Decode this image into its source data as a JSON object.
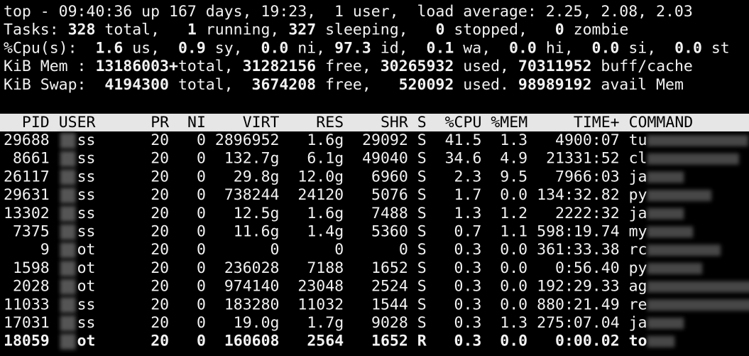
{
  "header_lines": [
    [
      {
        "t": "top - 09:40:36 up 167 days, 19:23,  1 user,  load average: 2.25, 2.08, 2.03"
      }
    ],
    [
      {
        "t": "Tasks: "
      },
      {
        "t": "328",
        "b": true
      },
      {
        "t": " total,   "
      },
      {
        "t": "1",
        "b": true
      },
      {
        "t": " running, "
      },
      {
        "t": "327",
        "b": true
      },
      {
        "t": " sleeping,   "
      },
      {
        "t": "0",
        "b": true
      },
      {
        "t": " stopped,   "
      },
      {
        "t": "0",
        "b": true
      },
      {
        "t": " zombie"
      }
    ],
    [
      {
        "t": "%Cpu(s):  "
      },
      {
        "t": "1.6",
        "b": true
      },
      {
        "t": " us,  "
      },
      {
        "t": "0.9",
        "b": true
      },
      {
        "t": " sy,  "
      },
      {
        "t": "0.0",
        "b": true
      },
      {
        "t": " ni, "
      },
      {
        "t": "97.3",
        "b": true
      },
      {
        "t": " id,  "
      },
      {
        "t": "0.1",
        "b": true
      },
      {
        "t": " wa,  "
      },
      {
        "t": "0.0",
        "b": true
      },
      {
        "t": " hi,  "
      },
      {
        "t": "0.0",
        "b": true
      },
      {
        "t": " si,  "
      },
      {
        "t": "0.0",
        "b": true
      },
      {
        "t": " st"
      }
    ],
    [
      {
        "t": "KiB Mem : "
      },
      {
        "t": "13186003+",
        "b": true
      },
      {
        "t": "total, "
      },
      {
        "t": "31282156",
        "b": true
      },
      {
        "t": " free, "
      },
      {
        "t": "30265932",
        "b": true
      },
      {
        "t": " used, "
      },
      {
        "t": "70311952",
        "b": true
      },
      {
        "t": " buff/cache"
      }
    ],
    [
      {
        "t": "KiB Swap:  "
      },
      {
        "t": "4194300",
        "b": true
      },
      {
        "t": " total,  "
      },
      {
        "t": "3674208",
        "b": true
      },
      {
        "t": " free,   "
      },
      {
        "t": "520092",
        "b": true
      },
      {
        "t": " used. "
      },
      {
        "t": "98989192",
        "b": true
      },
      {
        "t": " avail Mem"
      }
    ]
  ],
  "table": {
    "columns": [
      "PID",
      "USER",
      "PR",
      "NI",
      "VIRT",
      "RES",
      "SHR",
      "S",
      "%CPU",
      "%MEM",
      "TIME+",
      "COMMAND"
    ],
    "rows": [
      [
        "29688",
        "ss",
        "20",
        "0",
        "2896952",
        "1.6g",
        "29092",
        "S",
        "41.5",
        "1.3",
        "4900:07",
        "tu"
      ],
      [
        "8661",
        "ss",
        "20",
        "0",
        "132.7g",
        "6.1g",
        "49040",
        "S",
        "34.6",
        "4.9",
        "21331:52",
        "cl"
      ],
      [
        "26117",
        "ss",
        "20",
        "0",
        "29.8g",
        "12.0g",
        "6960",
        "S",
        "2.3",
        "9.5",
        "7966:03",
        "ja"
      ],
      [
        "29631",
        "ss",
        "20",
        "0",
        "738244",
        "24120",
        "5076",
        "S",
        "1.7",
        "0.0",
        "134:32.82",
        "py"
      ],
      [
        "13302",
        "ss",
        "20",
        "0",
        "12.5g",
        "1.6g",
        "7488",
        "S",
        "1.3",
        "1.2",
        "2222:32",
        "ja"
      ],
      [
        "7375",
        "ss",
        "20",
        "0",
        "11.6g",
        "1.4g",
        "5360",
        "S",
        "0.7",
        "1.1",
        "598:19.74",
        "my"
      ],
      [
        "9",
        "ot",
        "20",
        "0",
        "0",
        "0",
        "0",
        "S",
        "0.3",
        "0.0",
        "361:33.38",
        "rc"
      ],
      [
        "1598",
        "ot",
        "20",
        "0",
        "236028",
        "7188",
        "1652",
        "S",
        "0.3",
        "0.0",
        "0:56.40",
        "py"
      ],
      [
        "2028",
        "ot",
        "20",
        "0",
        "974140",
        "23048",
        "2524",
        "S",
        "0.3",
        "0.0",
        "192:29.33",
        "ag"
      ],
      [
        "11033",
        "ss",
        "20",
        "0",
        "183280",
        "11032",
        "1544",
        "S",
        "0.3",
        "0.0",
        "880:21.49",
        "re"
      ],
      [
        "17031",
        "ss",
        "20",
        "0",
        "19.0g",
        "1.7g",
        "9028",
        "S",
        "0.3",
        "1.3",
        "275:07.04",
        "ja"
      ],
      [
        "18059",
        "ot",
        "20",
        "0",
        "160608",
        "2564",
        "1652",
        "R",
        "0.3",
        "0.0",
        "0:00.02",
        "to"
      ]
    ],
    "bold_row": 11
  }
}
